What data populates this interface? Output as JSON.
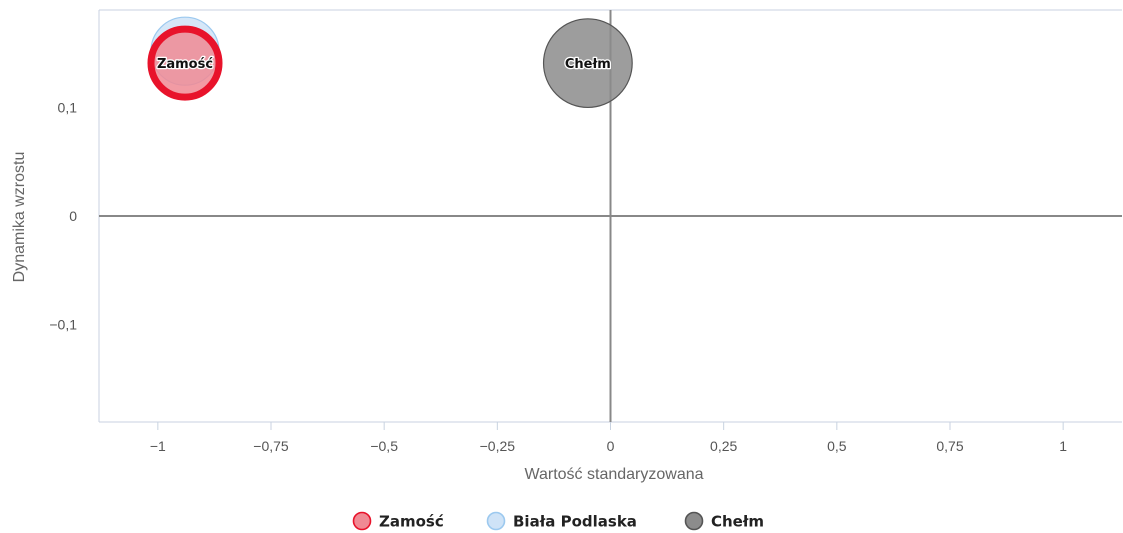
{
  "chart_data": {
    "type": "bubble",
    "xlabel": "Wartość standaryzowana",
    "ylabel": "Dynamika wzrostu",
    "xlim": [
      -1.13,
      1.13
    ],
    "ylim": [
      -0.19,
      0.19
    ],
    "x_ticks": [
      -1,
      -0.75,
      -0.5,
      -0.25,
      0,
      0.25,
      0.5,
      0.75,
      1
    ],
    "x_tick_labels": [
      "−1",
      "−0,75",
      "−0,5",
      "−0,25",
      "0",
      "0,25",
      "0,5",
      "0,75",
      "1"
    ],
    "y_ticks": [
      0.1,
      0,
      -0.1
    ],
    "y_tick_labels": [
      "0,1",
      "0",
      "−0,1"
    ],
    "grid": false,
    "legend_position": "bottom-center",
    "series": [
      {
        "name": "Zamość",
        "x": -0.94,
        "y": 0.141,
        "size": 1.0,
        "label": "Zamość",
        "color": "#e8132b",
        "fill": "#f08a94"
      },
      {
        "name": "Biała Podlaska",
        "x": -0.94,
        "y": 0.152,
        "size": 1.0,
        "label": "",
        "color": "#9cc9ef",
        "fill": "#cfe3f7"
      },
      {
        "name": "Chełm",
        "x": -0.05,
        "y": 0.141,
        "size": 1.7,
        "label": "Chełm",
        "color": "#555555",
        "fill": "#8c8c8c"
      }
    ]
  }
}
